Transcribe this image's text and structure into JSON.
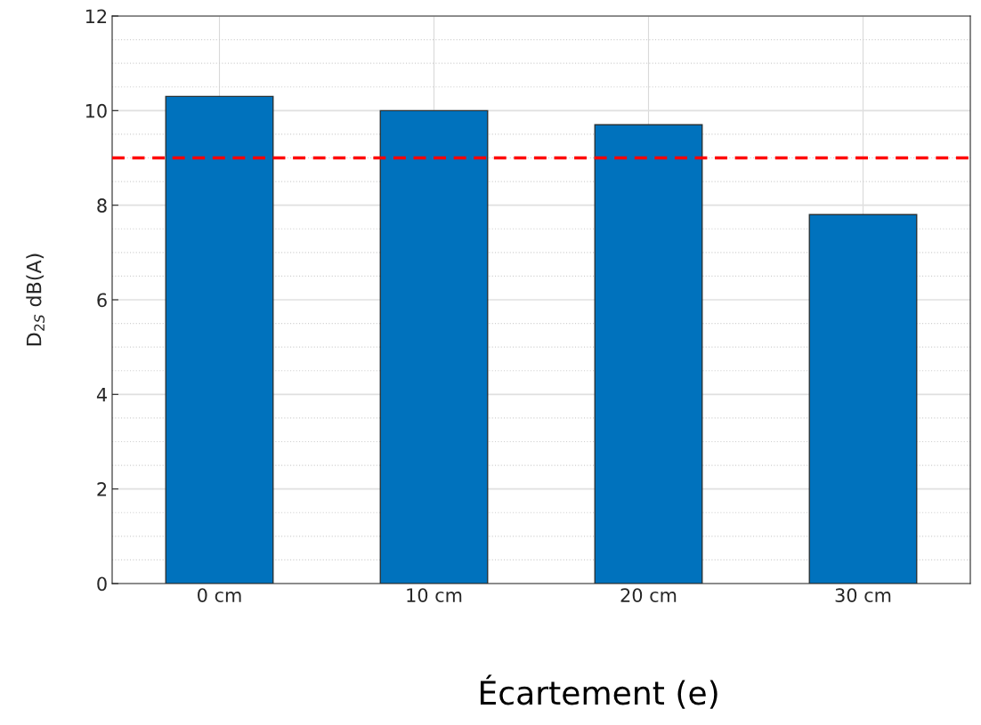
{
  "chart_data": {
    "type": "bar",
    "categories": [
      "0 cm",
      "10 cm",
      "20 cm",
      "30 cm"
    ],
    "values": [
      10.3,
      10.0,
      9.7,
      7.8
    ],
    "color": "#0072bd",
    "xlabel": "Écartement (e)",
    "ylabel": "D$_{2S}$ dB(A)",
    "ylim": [
      0,
      12
    ],
    "yticks": [
      0,
      2,
      4,
      6,
      8,
      10,
      12
    ],
    "grid": true,
    "ref_lines": [
      {
        "axis": "y",
        "value": 9,
        "color": "#ff0000",
        "line_style": "dashed"
      }
    ]
  }
}
